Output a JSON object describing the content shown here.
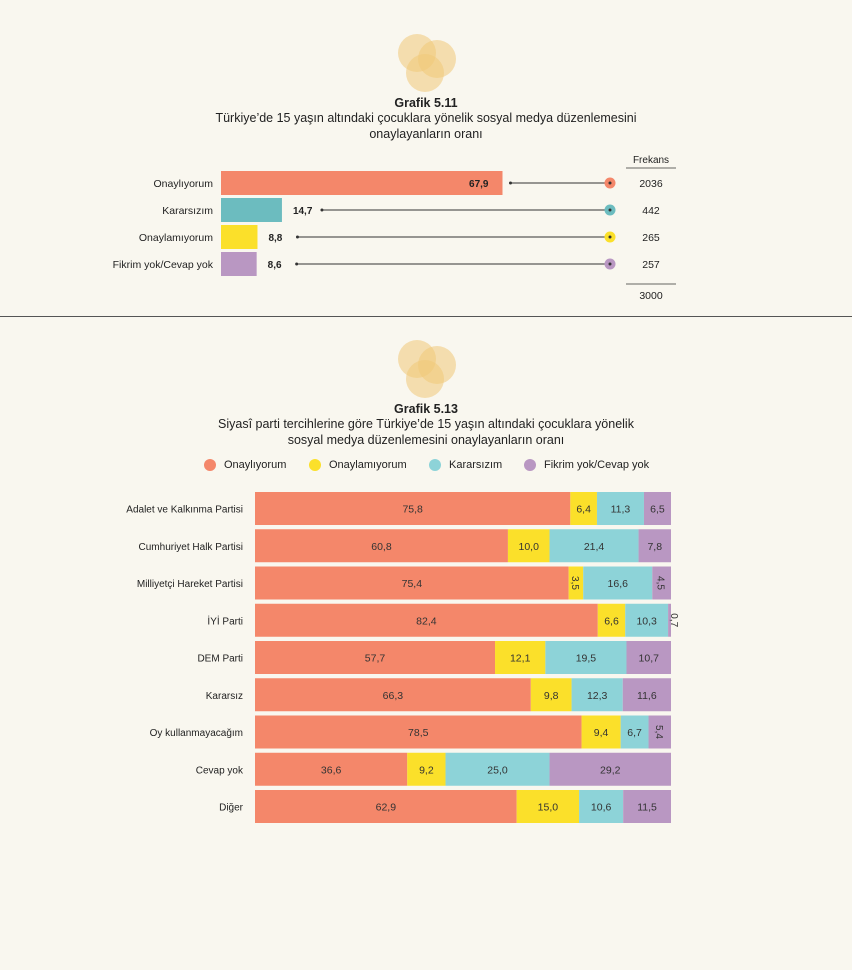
{
  "chart1": {
    "number": "Grafik 5.11",
    "title_line1": "Türkiye’de 15 yaşın altındaki çocuklara yönelik sosyal medya düzenlemesini",
    "title_line2": "onaylayanların oranı",
    "freq_header": "Frekans",
    "freq_total": "3000"
  },
  "chart2": {
    "number": "Grafik 5.13",
    "title_line1": "Siyasî parti tercihlerine göre Türkiye’de 15 yaşın altındaki çocuklara yönelik",
    "title_line2": "sosyal medya düzenlemesini onaylayanların oranı"
  },
  "legend": [
    {
      "label": "Onaylıyorum",
      "color": "#f4876a"
    },
    {
      "label": "Onaylamıyorum",
      "color": "#fbe02a"
    },
    {
      "label": "Kararsızım",
      "color": "#8dd3d8"
    },
    {
      "label": "Fikrim yok/Cevap yok",
      "color": "#b997c2"
    }
  ],
  "chart_data": [
    {
      "type": "bar",
      "title": "Grafik 5.11 Türkiye’de 15 yaşın altındaki çocuklara yönelik sosyal medya düzenlemesini onaylayanların oranı",
      "categories": [
        "Onaylıyorum",
        "Kararsızım",
        "Onaylamıyorum",
        "Fikrim yok/Cevap yok"
      ],
      "values": [
        67.9,
        14.7,
        8.8,
        8.6
      ],
      "value_labels": [
        "67,9",
        "14,7",
        "8,8",
        "8,6"
      ],
      "frequencies": [
        2036,
        442,
        265,
        257
      ],
      "colors": [
        "#f4876a",
        "#6cbcbf",
        "#fbe02a",
        "#b997c2"
      ],
      "orientation": "horizontal"
    },
    {
      "type": "bar",
      "stacked": true,
      "orientation": "horizontal",
      "title": "Grafik 5.13 Siyasî parti tercihlerine göre Türkiye’de 15 yaşın altındaki çocuklara yönelik sosyal medya düzenlemesini onaylayanların oranı",
      "categories": [
        "Adalet ve Kalkınma Partisi",
        "Cumhuriyet Halk Partisi",
        "Milliyetçi Hareket Partisi",
        "İYİ Parti",
        "DEM Parti",
        "Kararsız",
        "Oy kullanmayacağım",
        "Cevap yok",
        "Diğer"
      ],
      "legend_position": "top",
      "series": [
        {
          "name": "Onaylıyorum",
          "color": "#f4876a",
          "values": [
            75.8,
            60.8,
            75.4,
            82.4,
            57.7,
            66.3,
            78.5,
            36.6,
            62.9
          ],
          "labels": [
            "75,8",
            "60,8",
            "75,4",
            "82,4",
            "57,7",
            "66,3",
            "78,5",
            "36,6",
            "62,9"
          ]
        },
        {
          "name": "Onaylamıyorum",
          "color": "#fbe02a",
          "values": [
            6.4,
            10.0,
            3.5,
            6.6,
            12.1,
            9.8,
            9.4,
            9.2,
            15.0
          ],
          "labels": [
            "6,4",
            "10,0",
            "3,5",
            "6,6",
            "12,1",
            "9,8",
            "9,4",
            "9,2",
            "15,0"
          ]
        },
        {
          "name": "Kararsızım",
          "color": "#8dd3d8",
          "values": [
            11.3,
            21.4,
            16.6,
            10.3,
            19.5,
            12.3,
            6.7,
            25.0,
            10.6
          ],
          "labels": [
            "11,3",
            "21,4",
            "16,6",
            "10,3",
            "19,5",
            "12,3",
            "6,7",
            "25,0",
            "10,6"
          ]
        },
        {
          "name": "Fikrim yok/Cevap yok",
          "color": "#b997c2",
          "values": [
            6.5,
            7.8,
            4.5,
            0.7,
            10.7,
            11.6,
            5.4,
            29.2,
            11.5
          ],
          "labels": [
            "6,5",
            "7,8",
            "4,5",
            "0,7",
            "10,7",
            "11,6",
            "5,4",
            "29,2",
            "11,5"
          ]
        }
      ]
    }
  ]
}
